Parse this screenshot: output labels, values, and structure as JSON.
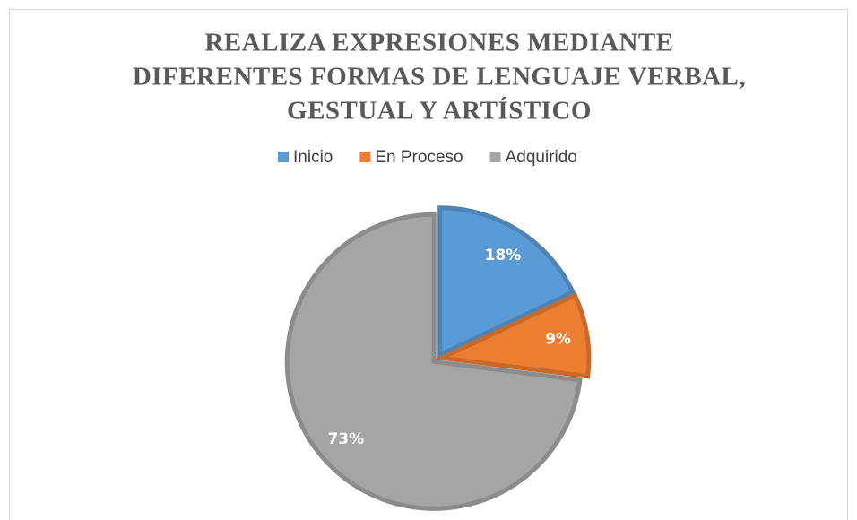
{
  "chart_data": {
    "type": "pie",
    "title": [
      "REALIZA EXPRESIONES MEDIANTE",
      "DIFERENTES FORMAS DE LENGUAJE VERBAL,",
      "GESTUAL Y ARTÍSTICO"
    ],
    "categories": [
      "Inicio",
      "En Proceso",
      "Adquirido"
    ],
    "values": [
      18,
      9,
      73
    ],
    "value_labels": [
      "18%",
      "9%",
      "73%"
    ],
    "colors": [
      "#5b9bd5",
      "#ed7d31",
      "#a5a5a5"
    ],
    "legend": "top"
  }
}
